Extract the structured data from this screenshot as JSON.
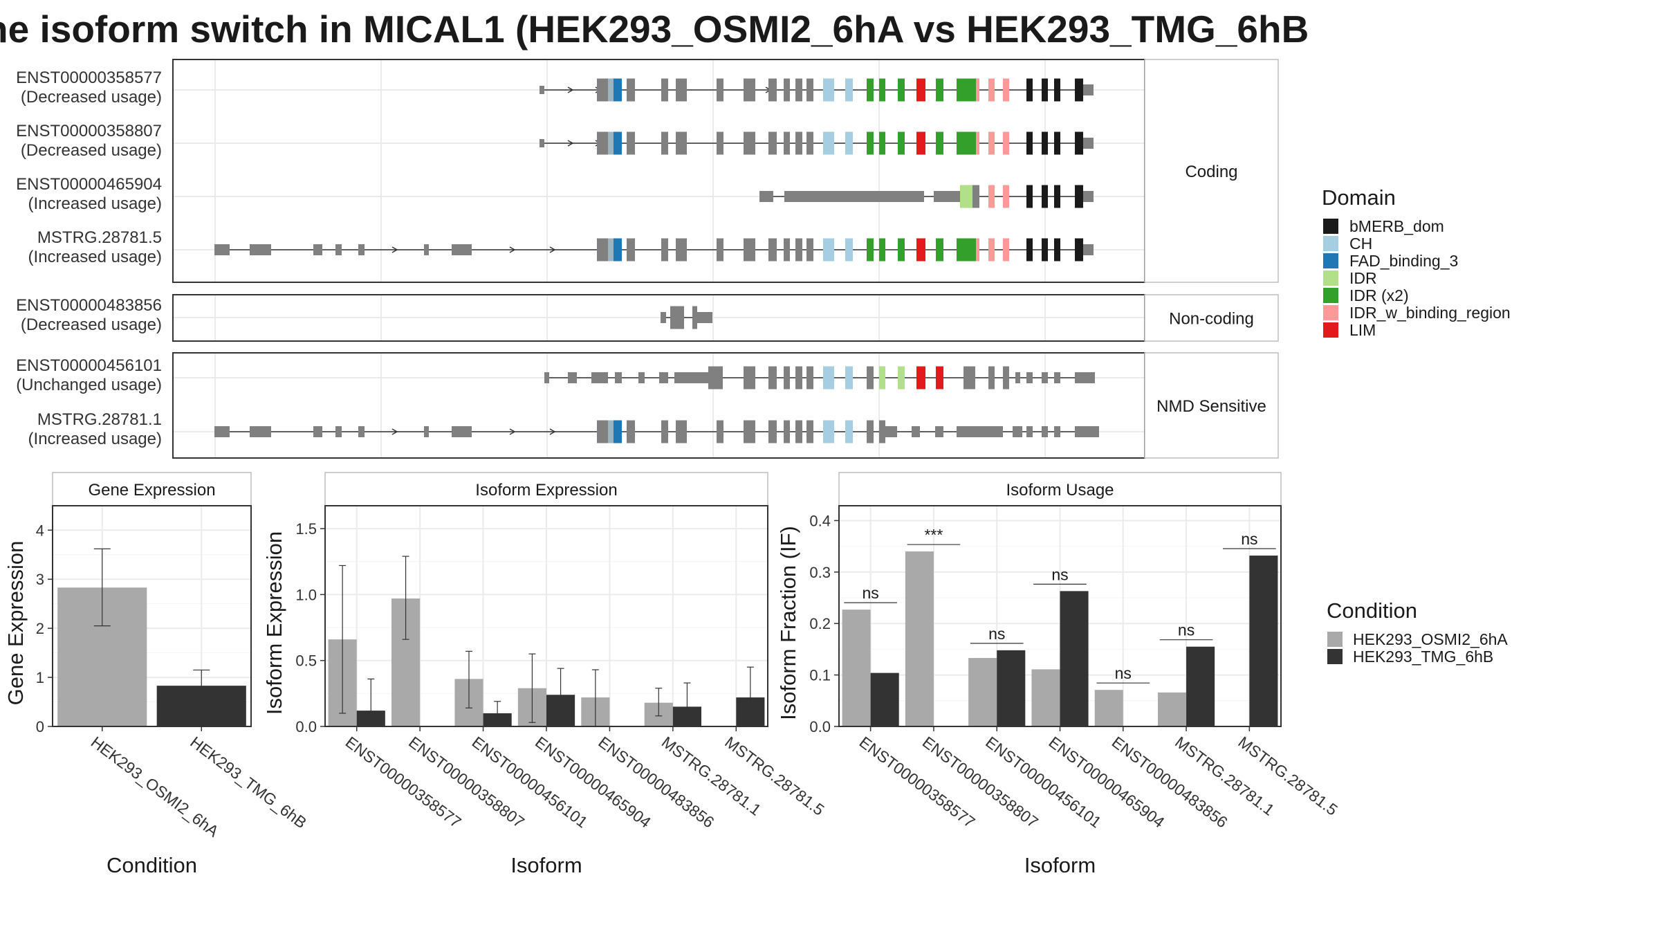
{
  "title": "he isoform switch in MICAL1 (HEK293_OSMI2_6hA vs HEK293_TMG_6hB",
  "colors": {
    "bMERB_dom": "#1a1a1a",
    "CH": "#a6cee3",
    "FAD_binding_3": "#1f78b4",
    "IDR": "#b2df8a",
    "IDR (x2)": "#33a02c",
    "IDR_w_binding_region": "#fb9a99",
    "LIM": "#e31a1c",
    "exon": "#808080",
    "cond1": "#a9a9a9",
    "cond2": "#333333"
  },
  "legend_domain": {
    "title": "Domain",
    "items": [
      "bMERB_dom",
      "CH",
      "FAD_binding_3",
      "IDR",
      "IDR (x2)",
      "IDR_w_binding_region",
      "LIM"
    ]
  },
  "legend_condition": {
    "title": "Condition",
    "items": [
      "HEK293_OSMI2_6hA",
      "HEK293_TMG_6hB"
    ]
  },
  "structure": {
    "panels": [
      {
        "label": "Coding",
        "transcripts": [
          {
            "id": "ENST00000358577",
            "usage": "(Decreased usage)"
          },
          {
            "id": "ENST00000358807",
            "usage": "(Decreased usage)"
          },
          {
            "id": "ENST00000465904",
            "usage": "(Increased usage)"
          },
          {
            "id": "MSTRG.28781.5",
            "usage": "(Increased usage)"
          }
        ]
      },
      {
        "label": "Non-coding",
        "transcripts": [
          {
            "id": "ENST00000483856",
            "usage": "(Decreased usage)"
          }
        ]
      },
      {
        "label": "NMD Sensitive",
        "transcripts": [
          {
            "id": "ENST00000456101",
            "usage": "(Unchanged usage)"
          },
          {
            "id": "MSTRG.28781.1",
            "usage": "(Increased usage)"
          }
        ]
      }
    ]
  },
  "chart_data": [
    {
      "type": "bar",
      "title": "Gene Expression",
      "xlabel": "Condition",
      "ylabel": "Gene Expression",
      "ylim": [
        0,
        4.3
      ],
      "yticks": [
        0,
        1,
        2,
        3,
        4
      ],
      "categories": [
        "HEK293_OSMI2_6hA",
        "HEK293_TMG_6hB"
      ],
      "values": [
        2.83,
        0.83
      ],
      "error_low": [
        2.05,
        0.52
      ],
      "error_high": [
        3.62,
        1.15
      ]
    },
    {
      "type": "bar",
      "title": "Isoform Expression",
      "xlabel": "Isoform",
      "ylabel": "Isoform Expression",
      "ylim": [
        0,
        1.6
      ],
      "yticks": [
        0.0,
        0.5,
        1.0,
        1.5
      ],
      "categories": [
        "ENST00000358577",
        "ENST00000358807",
        "ENST00000456101",
        "ENST00000465904",
        "ENST00000483856",
        "MSTRG.28781.1",
        "MSTRG.28781.5"
      ],
      "series": [
        {
          "name": "HEK293_OSMI2_6hA",
          "values": [
            0.66,
            0.97,
            0.36,
            0.29,
            0.22,
            0.18,
            0.0
          ],
          "error_low": [
            0.1,
            0.66,
            0.14,
            0.03,
            0.0,
            0.08,
            null
          ],
          "error_high": [
            1.22,
            1.29,
            0.57,
            0.55,
            0.43,
            0.29,
            null
          ]
        },
        {
          "name": "HEK293_TMG_6hB",
          "values": [
            0.12,
            0.0,
            0.1,
            0.24,
            0.0,
            0.15,
            0.22
          ],
          "error_low": [
            0.0,
            null,
            0.02,
            0.03,
            null,
            0.0,
            0.0
          ],
          "error_high": [
            0.36,
            null,
            0.19,
            0.44,
            null,
            0.33,
            0.45
          ]
        }
      ]
    },
    {
      "type": "bar",
      "title": "Isoform Usage",
      "xlabel": "Isoform",
      "ylabel": "Isoform Fraction (IF)",
      "ylim": [
        0,
        0.41
      ],
      "yticks": [
        0.0,
        0.1,
        0.2,
        0.3,
        0.4
      ],
      "categories": [
        "ENST00000358577",
        "ENST00000358807",
        "ENST00000456101",
        "ENST00000465904",
        "ENST00000483856",
        "MSTRG.28781.1",
        "MSTRG.28781.5"
      ],
      "series": [
        {
          "name": "HEK293_OSMI2_6hA",
          "values": [
            0.227,
            0.34,
            0.133,
            0.111,
            0.071,
            0.066,
            0.0
          ]
        },
        {
          "name": "HEK293_TMG_6hB",
          "values": [
            0.104,
            0.0,
            0.148,
            0.263,
            0.0,
            0.155,
            0.332
          ]
        }
      ],
      "annotations": [
        "ns",
        "***",
        "ns",
        "ns",
        "ns",
        "ns",
        "ns"
      ]
    }
  ]
}
